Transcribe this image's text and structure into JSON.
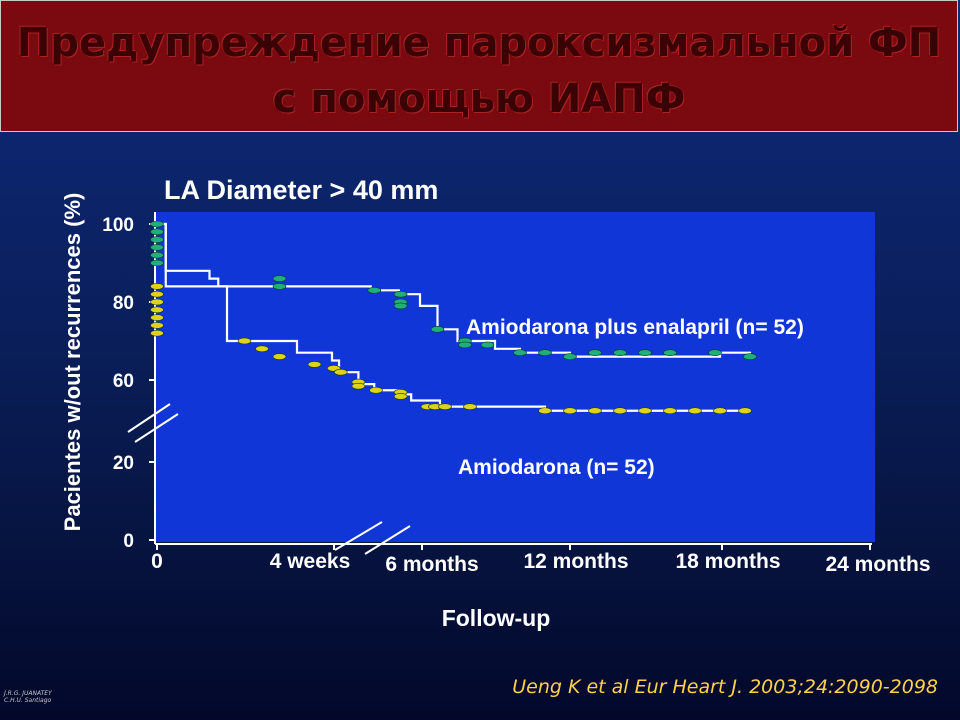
{
  "slide": {
    "title_line1": "Предупреждение пароксизмальной ФП",
    "title_line2": "с помощью ИАПФ",
    "citation": "Ueng K et al Eur Heart J. 2003;24:2090-2098",
    "signature_line1": "J.R.G. JUANATEY",
    "signature_line2": "C.H.U. Santiago"
  },
  "colors": {
    "title_bg": "#7a0a0f",
    "title_text": "#3b0206",
    "plot_bg": "#1036d8",
    "series_enalapril": "#1fb07a",
    "series_amiodarona": "#e0d21c",
    "citation": "#ffd24a"
  },
  "chart_data": {
    "type": "line",
    "title": "LA Diameter > 40 mm",
    "xlabel": "Follow-up",
    "ylabel": "Pacientes w/out recurrences (%)",
    "yticks": [
      "0",
      "20",
      "60",
      "80",
      "100"
    ],
    "xticks": [
      "0",
      "4 weeks",
      "6 months",
      "12 months",
      "18 months",
      "24 months"
    ],
    "x_unit": "months",
    "y_axis_break": "between 20 and 60",
    "x_axis_break": "between 4 weeks and 6 months",
    "grid": false,
    "series": [
      {
        "name": "Amiodarona plus enalapril (n= 52)",
        "x": [
          0,
          0.05,
          0.3,
          0.35,
          3.2,
          4.8,
          6.0,
          6.7,
          7.5,
          9.0,
          10.0,
          11.0,
          12.0,
          18.0,
          19.2
        ],
        "y": [
          100,
          88,
          86,
          84,
          83,
          82,
          79,
          73,
          70,
          68,
          67,
          67,
          66,
          67,
          66
        ],
        "censored": [
          [
            0,
            100
          ],
          [
            0,
            98
          ],
          [
            0,
            96
          ],
          [
            0,
            94
          ],
          [
            0,
            92
          ],
          [
            0,
            90
          ],
          [
            0.7,
            86
          ],
          [
            0.7,
            84
          ],
          [
            3.4,
            83
          ],
          [
            4.9,
            82
          ],
          [
            4.9,
            80
          ],
          [
            4.9,
            79
          ],
          [
            6.7,
            73
          ],
          [
            7.8,
            70
          ],
          [
            7.8,
            69
          ],
          [
            8.7,
            69
          ],
          [
            10.0,
            67
          ],
          [
            11.0,
            67
          ],
          [
            12.0,
            66
          ],
          [
            13.0,
            67
          ],
          [
            14.0,
            67
          ],
          [
            15.0,
            67
          ],
          [
            16.0,
            67
          ],
          [
            17.8,
            67
          ],
          [
            19.2,
            66
          ]
        ]
      },
      {
        "name": "Amiodarona (n= 52)",
        "x": [
          0,
          0.05,
          0.4,
          0.8,
          1.0,
          1.4,
          2.5,
          3.4,
          4.8,
          5.5,
          6.8,
          11.0,
          18.0,
          19.0
        ],
        "y": [
          100,
          84,
          70,
          67,
          65,
          62,
          58,
          55,
          53,
          50,
          47,
          45,
          45,
          45
        ],
        "censored": [
          [
            0,
            84
          ],
          [
            0,
            82
          ],
          [
            0,
            80
          ],
          [
            0,
            78
          ],
          [
            0,
            76
          ],
          [
            0,
            74
          ],
          [
            0,
            72
          ],
          [
            0.5,
            70
          ],
          [
            0.6,
            68
          ],
          [
            0.7,
            66
          ],
          [
            0.9,
            64
          ],
          [
            1.1,
            63
          ],
          [
            1.5,
            62
          ],
          [
            2.5,
            59
          ],
          [
            2.5,
            57
          ],
          [
            3.5,
            55
          ],
          [
            4.9,
            54
          ],
          [
            4.9,
            52
          ],
          [
            6.3,
            47
          ],
          [
            6.6,
            47
          ],
          [
            7.0,
            47
          ],
          [
            8.0,
            47
          ],
          [
            11.0,
            45
          ],
          [
            12.0,
            45
          ],
          [
            13.0,
            45
          ],
          [
            14.0,
            45
          ],
          [
            15.0,
            45
          ],
          [
            16.0,
            45
          ],
          [
            17.0,
            45
          ],
          [
            18.0,
            45
          ],
          [
            19.0,
            45
          ]
        ]
      }
    ]
  }
}
